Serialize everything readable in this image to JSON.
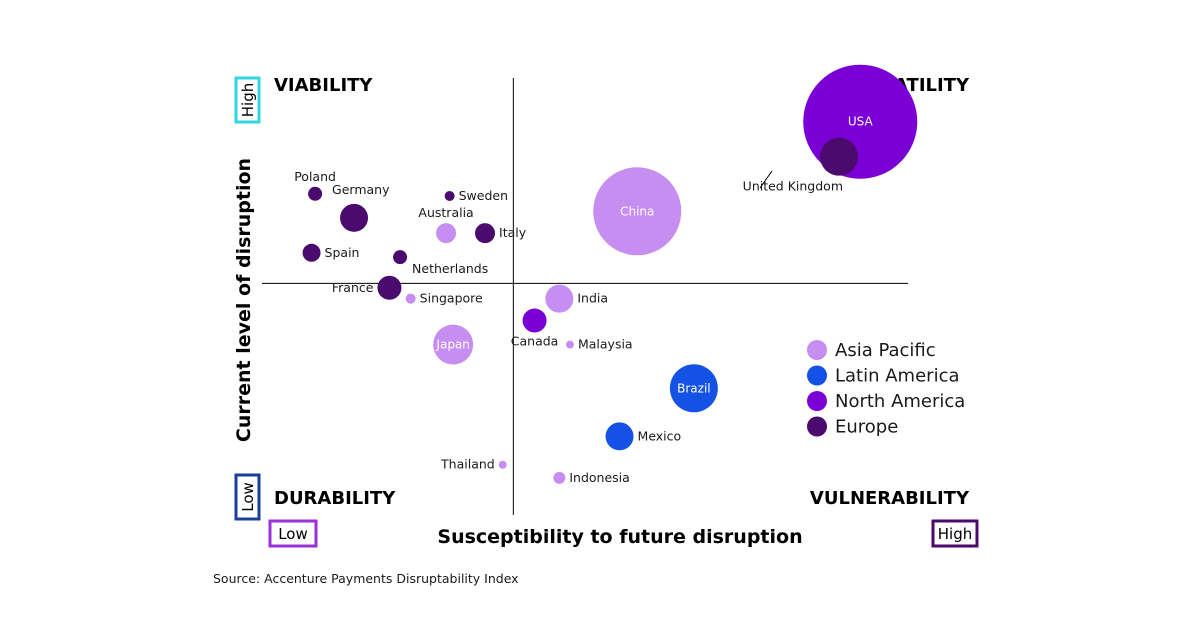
{
  "chart_data": {
    "type": "scatter",
    "title": "",
    "xlabel": "Susceptibility to future disruption",
    "ylabel": "Current level of disruption",
    "x_low_label": "Low",
    "x_high_label": "High",
    "y_low_label": "Low",
    "y_high_label": "High",
    "xlim": [
      0,
      10
    ],
    "ylim": [
      0,
      10
    ],
    "x_divider": 3.55,
    "y_divider": 5.3,
    "quadrants": {
      "top_left": "VIABILITY",
      "top_right": "VOLATILITY",
      "bottom_left": "DURABILITY",
      "bottom_right": "VULNERABILITY"
    },
    "legend": {
      "position": "right",
      "entries": [
        {
          "name": "Asia Pacific",
          "color": "#c58ef0"
        },
        {
          "name": "Latin America",
          "color": "#1452e6"
        },
        {
          "name": "North America",
          "color": "#7b00d6"
        },
        {
          "name": "Europe",
          "color": "#4a0a6e"
        }
      ]
    },
    "points": [
      {
        "label": "USA",
        "region": "North America",
        "x": 8.45,
        "y": 9.0,
        "size": 57,
        "label_pos": "inside"
      },
      {
        "label": "United Kingdom",
        "region": "Europe",
        "x": 8.15,
        "y": 8.2,
        "size": 19,
        "label_pos": "below-left"
      },
      {
        "label": "China",
        "region": "Asia Pacific",
        "x": 5.3,
        "y": 6.95,
        "size": 44,
        "label_pos": "inside"
      },
      {
        "label": "Poland",
        "region": "Europe",
        "x": 0.75,
        "y": 7.35,
        "size": 7,
        "label_pos": "above"
      },
      {
        "label": "Germany",
        "region": "Europe",
        "x": 1.3,
        "y": 6.8,
        "size": 14,
        "label_pos": "above-right"
      },
      {
        "label": "Sweden",
        "region": "Europe",
        "x": 2.65,
        "y": 7.3,
        "size": 5,
        "label_pos": "right"
      },
      {
        "label": "Australia",
        "region": "Asia Pacific",
        "x": 2.6,
        "y": 6.45,
        "size": 10,
        "label_pos": "above"
      },
      {
        "label": "Italy",
        "region": "Europe",
        "x": 3.15,
        "y": 6.45,
        "size": 10,
        "label_pos": "right"
      },
      {
        "label": "Spain",
        "region": "Europe",
        "x": 0.7,
        "y": 6.0,
        "size": 9,
        "label_pos": "right"
      },
      {
        "label": "Netherlands",
        "region": "Europe",
        "x": 1.95,
        "y": 5.9,
        "size": 7,
        "label_pos": "below-right"
      },
      {
        "label": "France",
        "region": "Europe",
        "x": 1.8,
        "y": 5.2,
        "size": 12,
        "label_pos": "left"
      },
      {
        "label": "Singapore",
        "region": "Asia Pacific",
        "x": 2.1,
        "y": 4.95,
        "size": 5,
        "label_pos": "right"
      },
      {
        "label": "India",
        "region": "Asia Pacific",
        "x": 4.2,
        "y": 4.95,
        "size": 14,
        "label_pos": "right"
      },
      {
        "label": "Japan",
        "region": "Asia Pacific",
        "x": 2.7,
        "y": 3.9,
        "size": 20,
        "label_pos": "inside"
      },
      {
        "label": "Canada",
        "region": "North America",
        "x": 3.85,
        "y": 4.45,
        "size": 12,
        "label_pos": "below"
      },
      {
        "label": "Malaysia",
        "region": "Asia Pacific",
        "x": 4.35,
        "y": 3.9,
        "size": 4,
        "label_pos": "right"
      },
      {
        "label": "Brazil",
        "region": "Latin America",
        "x": 6.1,
        "y": 2.9,
        "size": 24,
        "label_pos": "inside"
      },
      {
        "label": "Mexico",
        "region": "Latin America",
        "x": 5.05,
        "y": 1.8,
        "size": 14,
        "label_pos": "right"
      },
      {
        "label": "Thailand",
        "region": "Asia Pacific",
        "x": 3.4,
        "y": 1.15,
        "size": 4,
        "label_pos": "left"
      },
      {
        "label": "Indonesia",
        "region": "Asia Pacific",
        "x": 4.2,
        "y": 0.85,
        "size": 6,
        "label_pos": "right"
      }
    ]
  },
  "source": "Source: Accenture Payments Disruptability  Index"
}
